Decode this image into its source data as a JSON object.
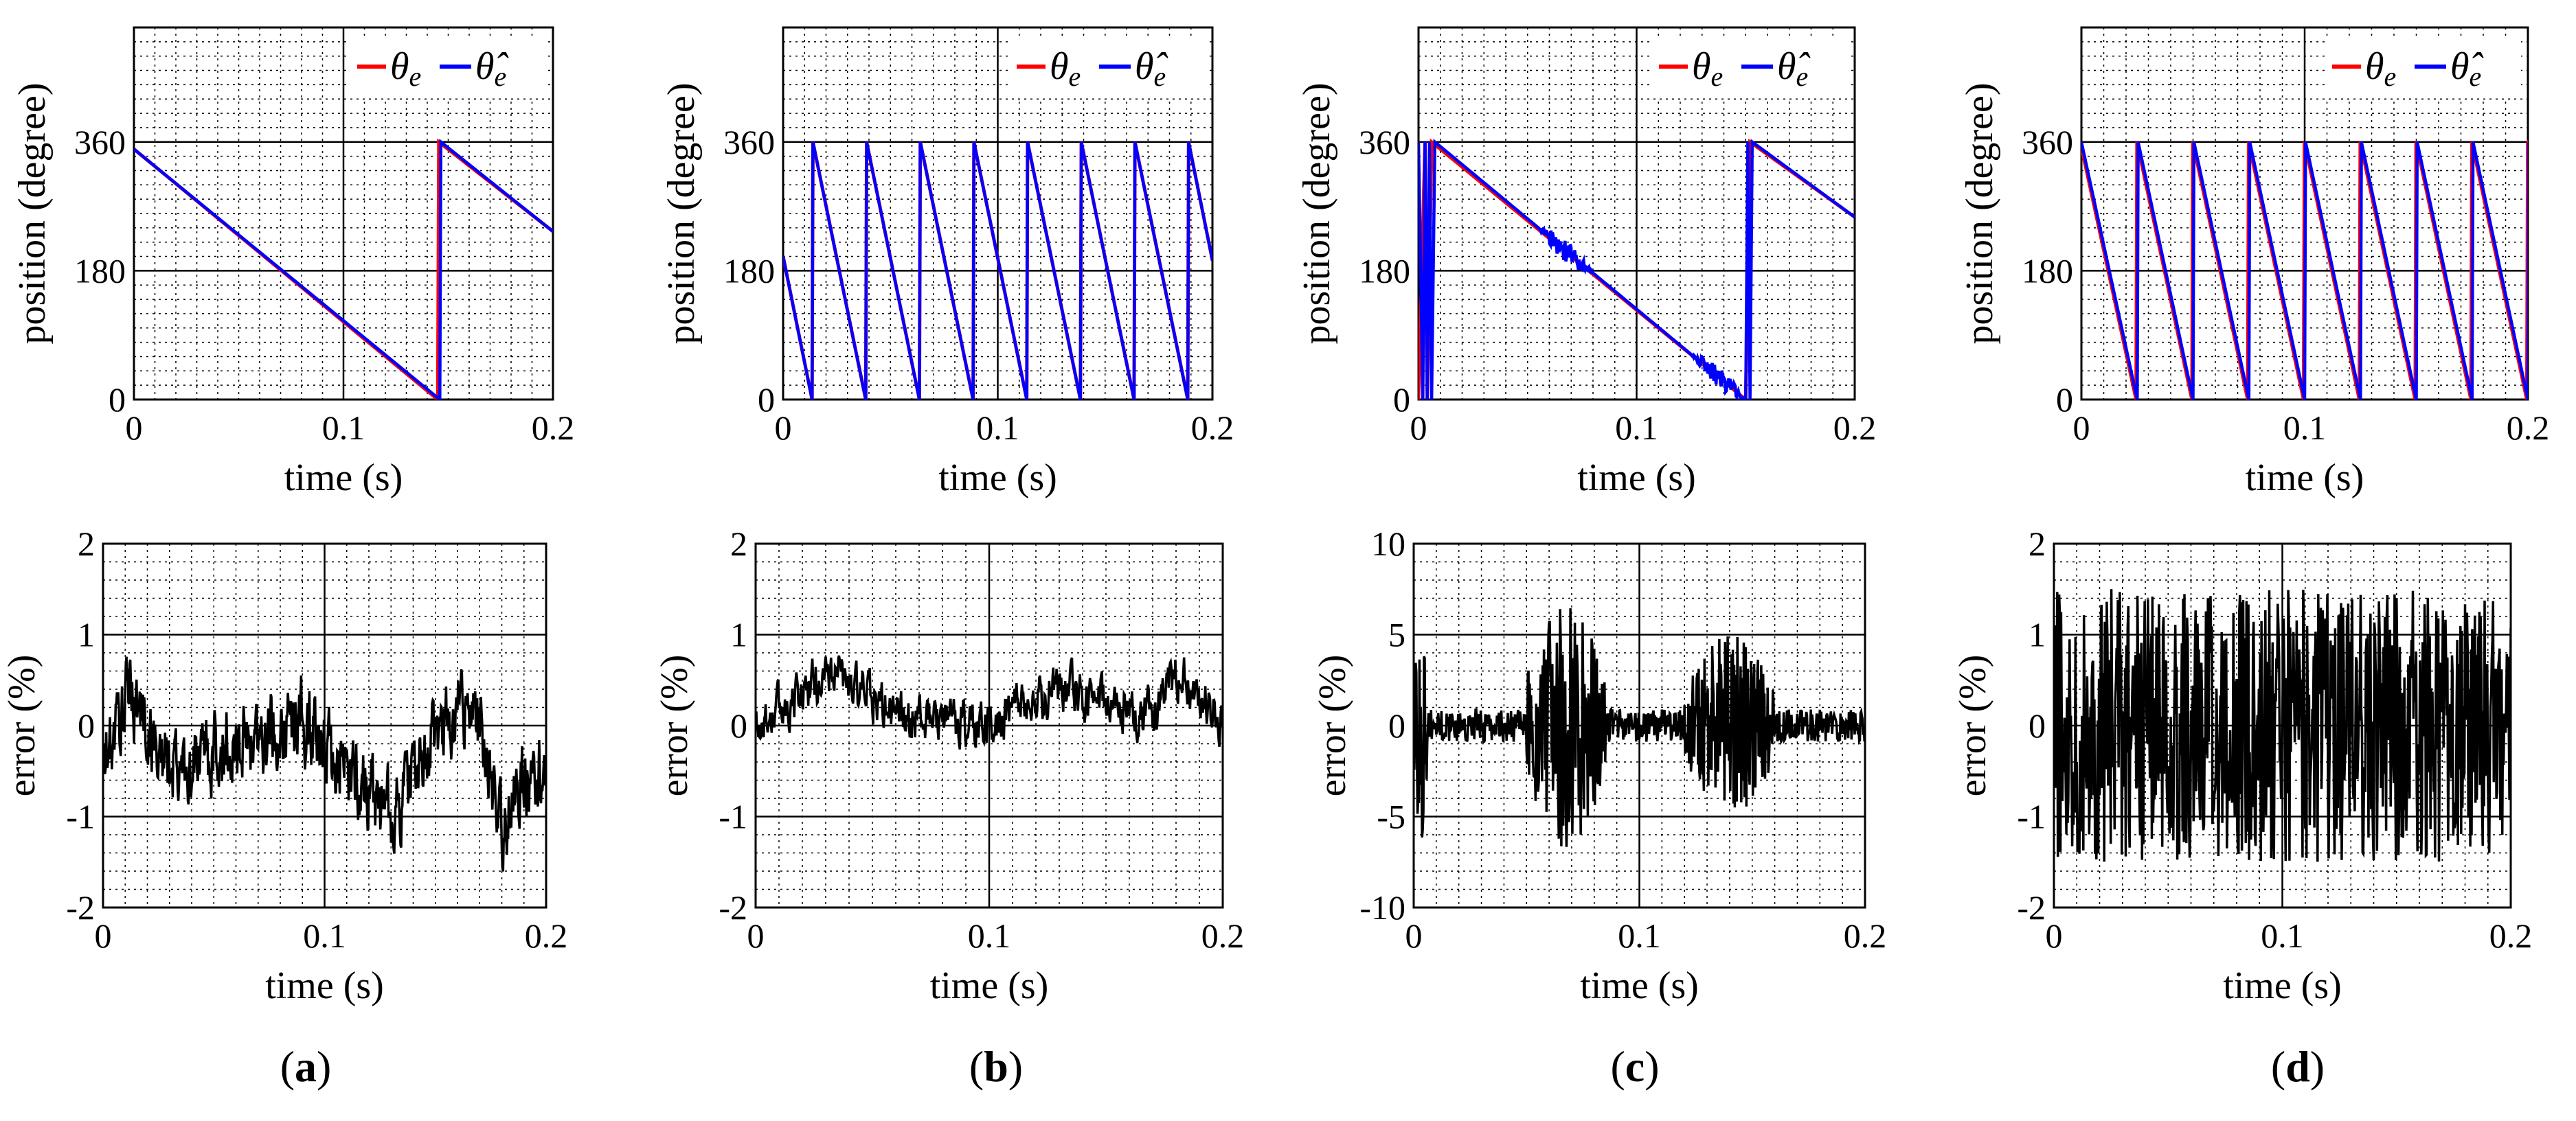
{
  "figure": {
    "panel_labels": [
      "a",
      "b",
      "c",
      "d"
    ]
  },
  "legend": {
    "actual_name": "θ",
    "actual_sub": "e",
    "estimated_name": "θ̂",
    "estimated_sub": "e"
  },
  "colors": {
    "actual": "#ff0000",
    "estimated": "#0000ff",
    "error": "#000000",
    "grid_major": "#000000",
    "grid_minor": "#000000"
  },
  "chart_data": [
    {
      "type": "line",
      "panel": "a",
      "row": "position",
      "xlabel": "time  (s)",
      "ylabel": "position (degree)",
      "xlim": [
        0,
        0.2
      ],
      "ylim": [
        0,
        520
      ],
      "xticks": [
        0,
        0.1,
        0.2
      ],
      "xtick_labels": [
        "0",
        "0.1",
        "0.2"
      ],
      "yticks": [
        0,
        180,
        360
      ],
      "ytick_labels": [
        "0",
        "180",
        "360"
      ],
      "legend": "top-right",
      "series": [
        {
          "name": "θe",
          "role": "actual",
          "points": [
            [
              0,
              350
            ],
            [
              0.145,
              0
            ],
            [
              0.1455,
              360
            ],
            [
              0.2,
              235
            ]
          ]
        },
        {
          "name": "θ̂e",
          "role": "estimated",
          "points": [
            [
              0,
              350
            ],
            [
              0.146,
              0
            ],
            [
              0.1465,
              360
            ],
            [
              0.2,
              235
            ]
          ]
        }
      ]
    },
    {
      "type": "line",
      "panel": "b",
      "row": "position",
      "xlabel": "time  (s)",
      "ylabel": "position (degree)",
      "xlim": [
        0,
        0.2
      ],
      "ylim": [
        0,
        520
      ],
      "xticks": [
        0,
        0.1,
        0.2
      ],
      "xtick_labels": [
        "0",
        "0.1",
        "0.2"
      ],
      "yticks": [
        0,
        180,
        360
      ],
      "ytick_labels": [
        "0",
        "180",
        "360"
      ],
      "legend": "top-right",
      "sawtooth": {
        "start_value": 200,
        "first_reset": 0.0135,
        "period": 0.025,
        "top": 360
      },
      "series": [
        {
          "name": "θe",
          "role": "actual"
        },
        {
          "name": "θ̂e",
          "role": "estimated"
        }
      ]
    },
    {
      "type": "line",
      "panel": "c",
      "row": "position",
      "xlabel": "time  (s)",
      "ylabel": "position (degree)",
      "xlim": [
        0,
        0.2
      ],
      "ylim": [
        0,
        520
      ],
      "xticks": [
        0,
        0.1,
        0.2
      ],
      "xtick_labels": [
        "0",
        "0.1",
        "0.2"
      ],
      "yticks": [
        0,
        180,
        360
      ],
      "ytick_labels": [
        "0",
        "180",
        "360"
      ],
      "legend": "top-right",
      "series": [
        {
          "name": "θe",
          "role": "actual",
          "points": [
            [
              0,
              0
            ],
            [
              0.003,
              360
            ],
            [
              0.004,
              0
            ],
            [
              0.006,
              360
            ],
            [
              0.15,
              0
            ],
            [
              0.152,
              360
            ],
            [
              0.2,
              255
            ]
          ]
        },
        {
          "name": "θ̂e",
          "role": "estimated",
          "points": [
            [
              0,
              360
            ],
            [
              0.002,
              0
            ],
            [
              0.003,
              360
            ],
            [
              0.004,
              0
            ],
            [
              0.005,
              360
            ],
            [
              0.006,
              0
            ],
            [
              0.0075,
              360
            ],
            [
              0.15,
              0
            ],
            [
              0.151,
              360
            ],
            [
              0.152,
              0
            ],
            [
              0.153,
              360
            ],
            [
              0.2,
              255
            ]
          ]
        }
      ]
    },
    {
      "type": "line",
      "panel": "d",
      "row": "position",
      "xlabel": "time  (s)",
      "ylabel": "position (degree)",
      "xlim": [
        0,
        0.2
      ],
      "ylim": [
        0,
        520
      ],
      "xticks": [
        0,
        0.1,
        0.2
      ],
      "xtick_labels": [
        "0",
        "0.1",
        "0.2"
      ],
      "yticks": [
        0,
        180,
        360
      ],
      "ytick_labels": [
        "0",
        "180",
        "360"
      ],
      "legend": "top-right",
      "sawtooth": {
        "start_value": 360,
        "first_reset": 0.025,
        "period": 0.025,
        "top": 360
      },
      "series": [
        {
          "name": "θe",
          "role": "actual"
        },
        {
          "name": "θ̂e",
          "role": "estimated"
        }
      ]
    },
    {
      "type": "line",
      "panel": "a",
      "row": "error",
      "xlabel": "time  (s)",
      "ylabel": "error (%)",
      "xlim": [
        0,
        0.2
      ],
      "ylim": [
        -2,
        2
      ],
      "xticks": [
        0,
        0.1,
        0.2
      ],
      "xtick_labels": [
        "0",
        "0.1",
        "0.2"
      ],
      "yticks": [
        -2,
        -1,
        0,
        1,
        2
      ],
      "ytick_labels": [
        "-2",
        "-1",
        "0",
        "1",
        "2"
      ],
      "series": [
        {
          "name": "error",
          "role": "error",
          "amplitude": 0.8,
          "smooth": true,
          "points": [
            [
              0,
              -0.5
            ],
            [
              0.012,
              0.4
            ],
            [
              0.03,
              -0.5
            ],
            [
              0.05,
              -0.3
            ],
            [
              0.07,
              -0.1
            ],
            [
              0.09,
              0.1
            ],
            [
              0.1,
              -0.3
            ],
            [
              0.12,
              -0.7
            ],
            [
              0.13,
              -1.0
            ],
            [
              0.15,
              -0.1
            ],
            [
              0.165,
              0.3
            ],
            [
              0.175,
              -0.5
            ],
            [
              0.178,
              -1.3
            ],
            [
              0.185,
              -0.7
            ],
            [
              0.2,
              -0.4
            ]
          ]
        }
      ]
    },
    {
      "type": "line",
      "panel": "b",
      "row": "error",
      "xlabel": "time  (s)",
      "ylabel": "error (%)",
      "xlim": [
        0,
        0.2
      ],
      "ylim": [
        -2,
        2
      ],
      "xticks": [
        0,
        0.1,
        0.2
      ],
      "xtick_labels": [
        "0",
        "0.1",
        "0.2"
      ],
      "yticks": [
        -2,
        -1,
        0,
        1,
        2
      ],
      "ytick_labels": [
        "-2",
        "-1",
        "0",
        "1",
        "2"
      ],
      "series": [
        {
          "name": "error",
          "role": "error",
          "amplitude": 0.45,
          "smooth": true,
          "points": [
            [
              0,
              0
            ],
            [
              0.033,
              0.6
            ],
            [
              0.06,
              0.1
            ],
            [
              0.1,
              0
            ],
            [
              0.13,
              0.4
            ],
            [
              0.17,
              0.1
            ],
            [
              0.18,
              0.6
            ],
            [
              0.2,
              0
            ]
          ]
        }
      ]
    },
    {
      "type": "line",
      "panel": "c",
      "row": "error",
      "xlabel": "time  (s)",
      "ylabel": "error (%)",
      "xlim": [
        0,
        0.2
      ],
      "ylim": [
        -10,
        10
      ],
      "xticks": [
        0,
        0.1,
        0.2
      ],
      "xtick_labels": [
        "0",
        "0.1",
        "0.2"
      ],
      "yticks": [
        -10,
        -5,
        0,
        5,
        10
      ],
      "ytick_labels": [
        "-10",
        "-5",
        "0",
        "5",
        "10"
      ],
      "series": [
        {
          "name": "error",
          "role": "error",
          "amplitude": 0.9,
          "smooth": false,
          "bursts": [
            [
              0.0,
              0.006,
              6.5
            ],
            [
              0.05,
              0.085,
              6.8
            ],
            [
              0.12,
              0.16,
              5.0
            ]
          ]
        }
      ]
    },
    {
      "type": "line",
      "panel": "d",
      "row": "error",
      "xlabel": "time  (s)",
      "ylabel": "error (%)",
      "xlim": [
        0,
        0.2
      ],
      "ylim": [
        -2,
        2
      ],
      "xticks": [
        0,
        0.1,
        0.2
      ],
      "xtick_labels": [
        "0",
        "0.1",
        "0.2"
      ],
      "yticks": [
        -2,
        -1,
        0,
        1,
        2
      ],
      "ytick_labels": [
        "-2",
        "-1",
        "0",
        "1",
        "2"
      ],
      "series": [
        {
          "name": "error",
          "role": "error",
          "amplitude": 1.5,
          "smooth": false,
          "points": [
            [
              0,
              0
            ],
            [
              0.2,
              0
            ]
          ]
        }
      ]
    }
  ]
}
